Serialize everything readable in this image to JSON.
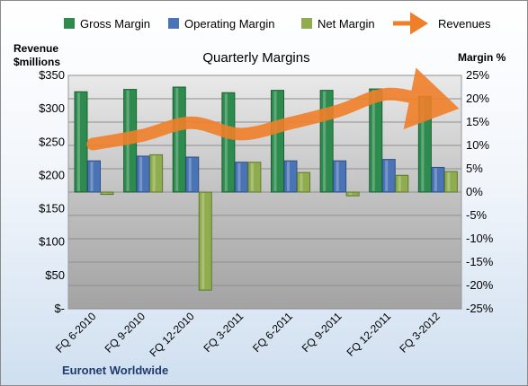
{
  "chart_data": {
    "type": "bar",
    "title": "Quarterly Margins",
    "left_axis": {
      "label_line1": "Revenue",
      "label_line2": "$millions",
      "ticks": [
        "$-",
        "$50",
        "$100",
        "$150",
        "$200",
        "$250",
        "$300",
        "$350"
      ],
      "ylim": [
        0,
        350
      ]
    },
    "right_axis": {
      "label": "Margin %",
      "ticks": [
        "-25%",
        "-20%",
        "-15%",
        "-10%",
        "-5%",
        "0%",
        "5%",
        "10%",
        "15%",
        "20%",
        "25%"
      ],
      "ylim": [
        -25,
        25
      ]
    },
    "categories": [
      "FQ 6-2010",
      "FQ 9-2010",
      "FQ 12-2010",
      "FQ 3-2011",
      "FQ 6-2011",
      "FQ 9-2011",
      "FQ 12-2011",
      "FQ 3-2012"
    ],
    "series": [
      {
        "name": "Gross Margin",
        "type": "bar",
        "axis": "right",
        "color": "#2e8b4e",
        "values": [
          21.5,
          22.0,
          22.5,
          21.3,
          21.8,
          21.8,
          22.1,
          20.5
        ]
      },
      {
        "name": "Operating Margin",
        "type": "bar",
        "axis": "right",
        "color": "#4a74b6",
        "values": [
          6.7,
          7.7,
          7.5,
          6.4,
          6.7,
          6.7,
          7.0,
          5.3
        ]
      },
      {
        "name": "Net Margin",
        "type": "bar",
        "axis": "right",
        "color": "#8fac4e",
        "values": [
          -0.5,
          8.0,
          -21.0,
          6.4,
          4.2,
          -0.8,
          3.6,
          4.4
        ]
      },
      {
        "name": "Revenues",
        "type": "line",
        "axis": "left",
        "color": "#f07f2a",
        "values": [
          247,
          260,
          279,
          262,
          278,
          297,
          322,
          307
        ]
      }
    ],
    "footer": "Euronet Worldwide",
    "grid": true,
    "legend": "top"
  }
}
